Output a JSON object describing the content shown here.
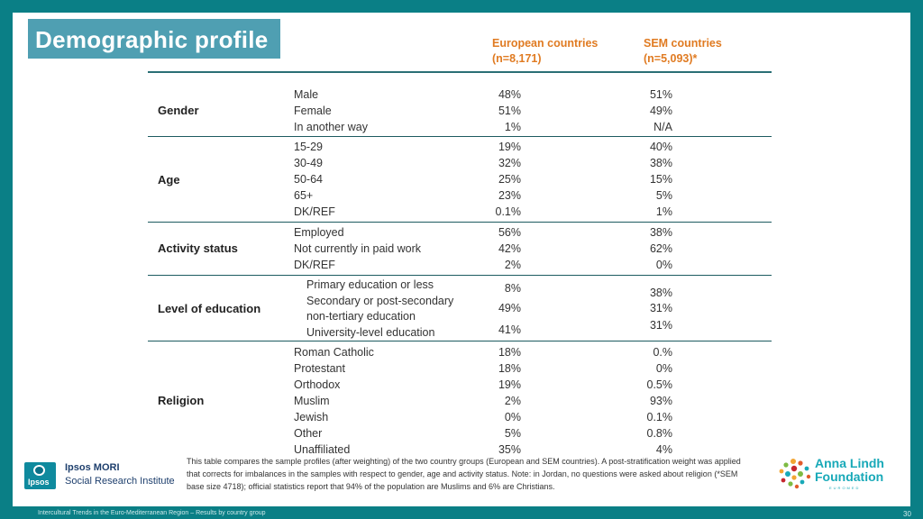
{
  "title": "Demographic profile",
  "columns": {
    "eu": {
      "name": "European countries",
      "n": "(n=8,171)"
    },
    "sem": {
      "name": "SEM countries",
      "n": "(n=5,093)*"
    }
  },
  "groups": {
    "gender": {
      "label": "Gender",
      "rows": [
        {
          "label": "Male",
          "eu": "48%",
          "sem": "51%"
        },
        {
          "label": "Female",
          "eu": "51%",
          "sem": "49%"
        },
        {
          "label": "In another way",
          "eu": "1%",
          "sem": "N/A"
        }
      ]
    },
    "age": {
      "label": "Age",
      "rows": [
        {
          "label": "15-29",
          "eu": "19%",
          "sem": "40%"
        },
        {
          "label": "30-49",
          "eu": "32%",
          "sem": "38%"
        },
        {
          "label": "50-64",
          "eu": "25%",
          "sem": "15%"
        },
        {
          "label": "65+",
          "eu": "23%",
          "sem": "5%"
        },
        {
          "label": "DK/REF",
          "eu": "0.1%",
          "sem": "1%"
        }
      ]
    },
    "activity": {
      "label": "Activity status",
      "rows": [
        {
          "label": "Employed",
          "eu": "56%",
          "sem": "38%"
        },
        {
          "label": "Not currently in paid work",
          "eu": "42%",
          "sem": "62%"
        },
        {
          "label": "DK/REF",
          "eu": "2%",
          "sem": "0%"
        }
      ]
    },
    "education": {
      "label": "Level of education",
      "primary": "Primary education or less",
      "secondary_1": "Secondary or post-secondary",
      "secondary_2": "non-tertiary education",
      "university": "University-level education",
      "eu_values": [
        "8%",
        "49%",
        "41%"
      ],
      "sem_values": [
        "38%",
        "31%",
        "31%"
      ]
    },
    "religion": {
      "label": "Religion",
      "rows": [
        {
          "label": "Roman Catholic",
          "eu": "18%",
          "sem": "0.%"
        },
        {
          "label": "Protestant",
          "eu": "18%",
          "sem": "0%"
        },
        {
          "label": "Orthodox",
          "eu": "19%",
          "sem": "0.5%"
        },
        {
          "label": "Muslim",
          "eu": "2%",
          "sem": "93%"
        },
        {
          "label": "Jewish",
          "eu": "0%",
          "sem": "0.1%"
        },
        {
          "label": "Other",
          "eu": "5%",
          "sem": "0.8%"
        },
        {
          "label": "Unaffiliated",
          "eu": "35%",
          "sem": "4%"
        }
      ]
    }
  },
  "note": "This table compares the sample profiles (after weighting) of the two country groups (European and SEM countries). A post-stratification weight was applied that corrects for imbalances in the samples with respect to gender, age and activity status. Note: in Jordan, no questions were asked about religion (*SEM base size 4718); official statistics report that 94% of the population are Muslims and 6% are Christians.",
  "logos": {
    "ipsos_badge": "Ipsos",
    "ipsos_line1": "Ipsos MORI",
    "ipsos_line2": "Social Research Institute",
    "anna_line1": "Anna Lindh",
    "anna_line2": "Foundation",
    "anna_line3": "EUROMED"
  },
  "footer": "Intercultural Trends in the Euro-Mediterranean Region – Results by country group",
  "page_number": "30",
  "colors": {
    "frame": "#0a7f86",
    "title_bg": "#4f9fb2",
    "accent": "#e07b22",
    "rule": "#1d5b60"
  }
}
